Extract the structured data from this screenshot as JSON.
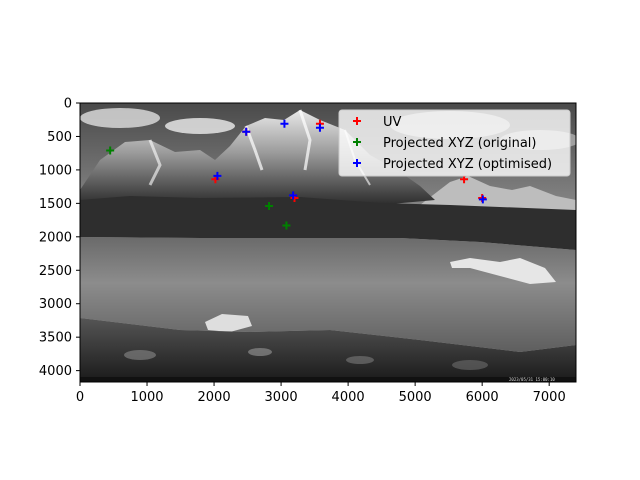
{
  "chart_data": {
    "type": "scatter",
    "title": "",
    "xlabel": "",
    "ylabel": "",
    "xlim": [
      0,
      7400
    ],
    "ylim": [
      4170,
      0
    ],
    "y_inverted": true,
    "grid": false,
    "legend_position": "upper right",
    "background": "grayscale mountain lake photograph",
    "image_caption": "2023/05/31 15:00:10",
    "xticks": [
      0,
      1000,
      2000,
      3000,
      4000,
      5000,
      6000,
      7000
    ],
    "yticks": [
      0,
      500,
      1000,
      1500,
      2000,
      2500,
      3000,
      3500,
      4000
    ],
    "marker": "+",
    "series": [
      {
        "name": "UV",
        "color": "#ff0000",
        "x": [
          2020,
          2480,
          3580,
          3200,
          5730,
          6000
        ],
        "y": [
          1140,
          430,
          310,
          1420,
          1140,
          1420
        ]
      },
      {
        "name": "Projected XYZ (original)",
        "color": "#008000",
        "x": [
          450,
          2820,
          3080
        ],
        "y": [
          710,
          1540,
          1830
        ]
      },
      {
        "name": "Projected XYZ (optimised)",
        "color": "#0000ff",
        "x": [
          2050,
          2480,
          3050,
          3580,
          3180,
          6010
        ],
        "y": [
          1090,
          430,
          310,
          370,
          1380,
          1440
        ]
      }
    ]
  }
}
